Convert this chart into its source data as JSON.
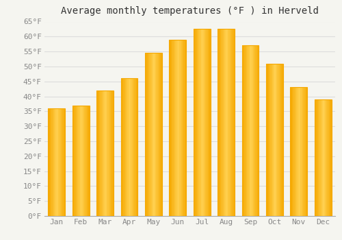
{
  "title": "Average monthly temperatures (°F ) in Herveld",
  "months": [
    "Jan",
    "Feb",
    "Mar",
    "Apr",
    "May",
    "Jun",
    "Jul",
    "Aug",
    "Sep",
    "Oct",
    "Nov",
    "Dec"
  ],
  "values": [
    36,
    37,
    42,
    46,
    54.5,
    59,
    62.5,
    62.5,
    57,
    51,
    43,
    39
  ],
  "bar_color_left": "#F5A800",
  "bar_color_center": "#FFD050",
  "bar_color_right": "#F5A800",
  "ylim": [
    0,
    65
  ],
  "yticks": [
    0,
    5,
    10,
    15,
    20,
    25,
    30,
    35,
    40,
    45,
    50,
    55,
    60,
    65
  ],
  "background_color": "#F5F5F0",
  "plot_bg_color": "#F5F5F0",
  "grid_color": "#DDDDDD",
  "title_fontsize": 10,
  "tick_fontsize": 8,
  "title_color": "#333333",
  "tick_color": "#888888"
}
